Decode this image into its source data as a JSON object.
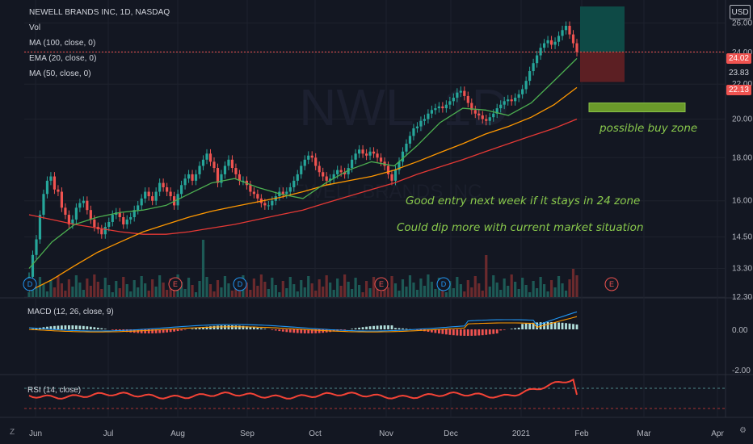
{
  "header": {
    "title": "NEWELL BRANDS INC, 1D, NASDAQ",
    "indicators": [
      "Vol",
      "MA (100, close, 0)",
      "EMA (20, close, 0)",
      "MA (50, close, 0)"
    ],
    "currency_button": "USD"
  },
  "watermark": {
    "symbol": "NWL",
    "interval": "1D",
    "company": "NEWELL BRANDS INC"
  },
  "annotations": {
    "buy_zone": "possible buy zone",
    "line1": "Good entry next week if it stays in 24 zone",
    "line2": "Could dip more with current market situation"
  },
  "price_tags": {
    "current": "24.02",
    "mid": "23.83",
    "stop": "22.13"
  },
  "macd": {
    "label": "MACD (12, 26, close, 9)"
  },
  "rsi": {
    "label": "RSI (14, close)"
  },
  "footer": {
    "left": "Z",
    "right": "⚙"
  },
  "colors": {
    "up": "#26a69a",
    "down": "#ef5350",
    "ma100": "#e53935",
    "ema20": "#4caf50",
    "ma50": "#ff9800",
    "annotation": "#89c94c",
    "target_zone": "#0e4a46",
    "stop_zone": "#5c1f23",
    "buy_zone": "#8bc34a",
    "macd": "#2196f3",
    "signal": "#ff9800",
    "rsi": "#f44336"
  },
  "chart_data": {
    "type": "candlestick",
    "x_ticks": [
      "Jun",
      "Jul",
      "Aug",
      "Sep",
      "Oct",
      "Nov",
      "Dec",
      "2021",
      "Feb",
      "Mar",
      "Apr"
    ],
    "y_ticks": [
      "26.00",
      "24.00",
      "22.00",
      "20.00",
      "18.00",
      "16.00",
      "14.50",
      "13.30",
      "12.30"
    ],
    "y_scale": "log",
    "ylim": [
      12.3,
      27.2
    ],
    "macd_ticks": [
      "0.00",
      "-2.00"
    ],
    "closes": [
      13.0,
      13.8,
      14.4,
      15.4,
      16.3,
      16.9,
      17.1,
      16.5,
      16.4,
      15.7,
      15.4,
      15.0,
      15.2,
      15.7,
      15.9,
      16.0,
      15.6,
      15.2,
      14.9,
      14.8,
      14.6,
      14.9,
      15.1,
      15.4,
      15.5,
      15.3,
      15.0,
      15.2,
      15.3,
      15.6,
      15.8,
      16.1,
      16.4,
      16.2,
      16.0,
      16.4,
      16.8,
      16.6,
      16.4,
      16.2,
      15.8,
      16.3,
      16.7,
      17.0,
      17.2,
      16.9,
      17.2,
      17.6,
      17.9,
      18.2,
      17.8,
      17.5,
      16.8,
      17.2,
      17.6,
      17.9,
      17.5,
      17.2,
      16.9,
      16.9,
      16.7,
      16.4,
      16.3,
      16.1,
      15.9,
      15.8,
      15.8,
      16.0,
      16.2,
      16.4,
      16.3,
      16.4,
      16.6,
      16.9,
      17.2,
      17.6,
      17.9,
      18.1,
      18.0,
      17.6,
      17.3,
      17.1,
      16.9,
      17.0,
      17.2,
      17.4,
      17.3,
      17.2,
      17.5,
      17.9,
      18.2,
      18.4,
      18.2,
      18.1,
      18.3,
      18.2,
      18.0,
      17.8,
      17.6,
      17.2,
      16.9,
      17.4,
      17.8,
      18.3,
      18.7,
      19.1,
      19.5,
      19.6,
      19.9,
      20.0,
      20.3,
      20.5,
      20.6,
      20.7,
      20.6,
      20.8,
      21.0,
      21.2,
      21.5,
      21.6,
      21.3,
      20.9,
      20.5,
      20.3,
      20.2,
      20.0,
      19.9,
      20.1,
      20.3,
      20.6,
      20.8,
      21.0,
      21.1,
      21.0,
      21.2,
      21.4,
      21.7,
      22.2,
      22.8,
      23.3,
      23.8,
      24.3,
      24.6,
      24.8,
      24.5,
      24.7,
      25.1,
      25.5,
      25.8,
      25.2,
      24.6,
      24.02
    ],
    "ma100": [
      15.4,
      15.2,
      15.0,
      14.85,
      14.7,
      14.6,
      14.6,
      14.7,
      14.85,
      15.0,
      15.2,
      15.4,
      15.6,
      15.9,
      16.2,
      16.5,
      16.8,
      17.2,
      17.55,
      17.9,
      18.3,
      18.7,
      19.1,
      19.5,
      20.0
    ],
    "ma50": [
      12.5,
      12.9,
      13.4,
      13.9,
      14.3,
      14.7,
      15.0,
      15.3,
      15.55,
      15.75,
      15.95,
      16.15,
      16.4,
      16.7,
      16.9,
      17.1,
      17.4,
      17.8,
      18.25,
      18.7,
      19.2,
      19.6,
      20.1,
      20.8,
      21.8
    ],
    "ema20": [
      13.3,
      14.3,
      15.0,
      15.3,
      15.5,
      15.6,
      15.8,
      16.3,
      16.8,
      17.0,
      16.6,
      16.3,
      16.1,
      16.8,
      17.4,
      17.8,
      17.6,
      18.6,
      19.8,
      20.6,
      20.5,
      20.2,
      20.9,
      22.2,
      23.6
    ],
    "position": {
      "entry": 24.02,
      "target": 27.2,
      "stop": 22.13
    },
    "buy_zone": [
      20.4,
      20.9
    ],
    "events": [
      "D",
      "E",
      "D",
      "E",
      "D",
      "E"
    ],
    "legend_placement": "top-left"
  }
}
